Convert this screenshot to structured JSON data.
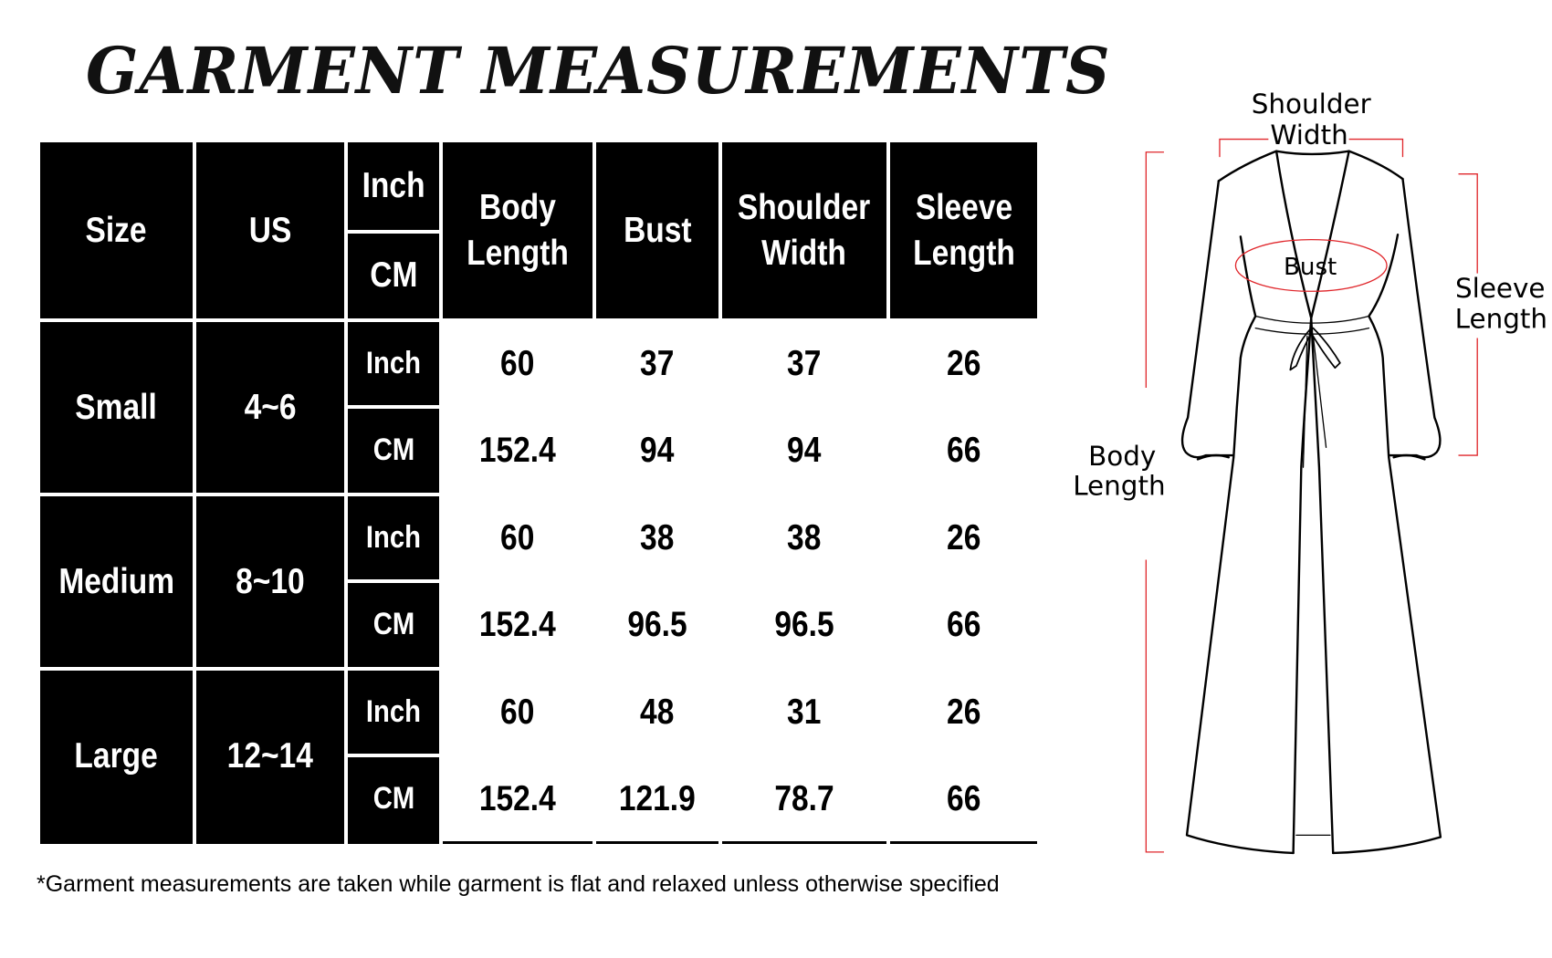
{
  "title": "GARMENT MEASUREMENTS",
  "table": {
    "headers": [
      "Size",
      "US",
      "Inch\nCM",
      "Body\nLength",
      "Bust",
      "Shoulder\nWidth",
      "Sleeve\nLength"
    ],
    "unit_header": {
      "top": "Inch",
      "bottom": "CM"
    },
    "rows": [
      {
        "size": "Small",
        "us": "4~6",
        "inch": {
          "unit": "Inch",
          "values": [
            "60",
            "37",
            "37",
            "26"
          ]
        },
        "cm": {
          "unit": "CM",
          "values": [
            "152.4",
            "94",
            "94",
            "66"
          ]
        }
      },
      {
        "size": "Medium",
        "us": "8~10",
        "inch": {
          "unit": "Inch",
          "values": [
            "60",
            "38",
            "38",
            "26"
          ]
        },
        "cm": {
          "unit": "CM",
          "values": [
            "152.4",
            "96.5",
            "96.5",
            "66"
          ]
        }
      },
      {
        "size": "Large",
        "us": "12~14",
        "inch": {
          "unit": "Inch",
          "values": [
            "60",
            "48",
            "31",
            "26"
          ]
        },
        "cm": {
          "unit": "CM",
          "values": [
            "152.4",
            "121.9",
            "78.7",
            "66"
          ]
        }
      }
    ]
  },
  "footnote": "*Garment measurements are taken while garment is flat and relaxed unless otherwise specified",
  "diagram": {
    "shoulder_label": [
      "Shoulder",
      "Width"
    ],
    "sleeve_label": [
      "Sleeve",
      "Length"
    ],
    "body_label": [
      "Body",
      "Length"
    ],
    "bust_label": "Bust",
    "marker_color": "#e0262b"
  }
}
